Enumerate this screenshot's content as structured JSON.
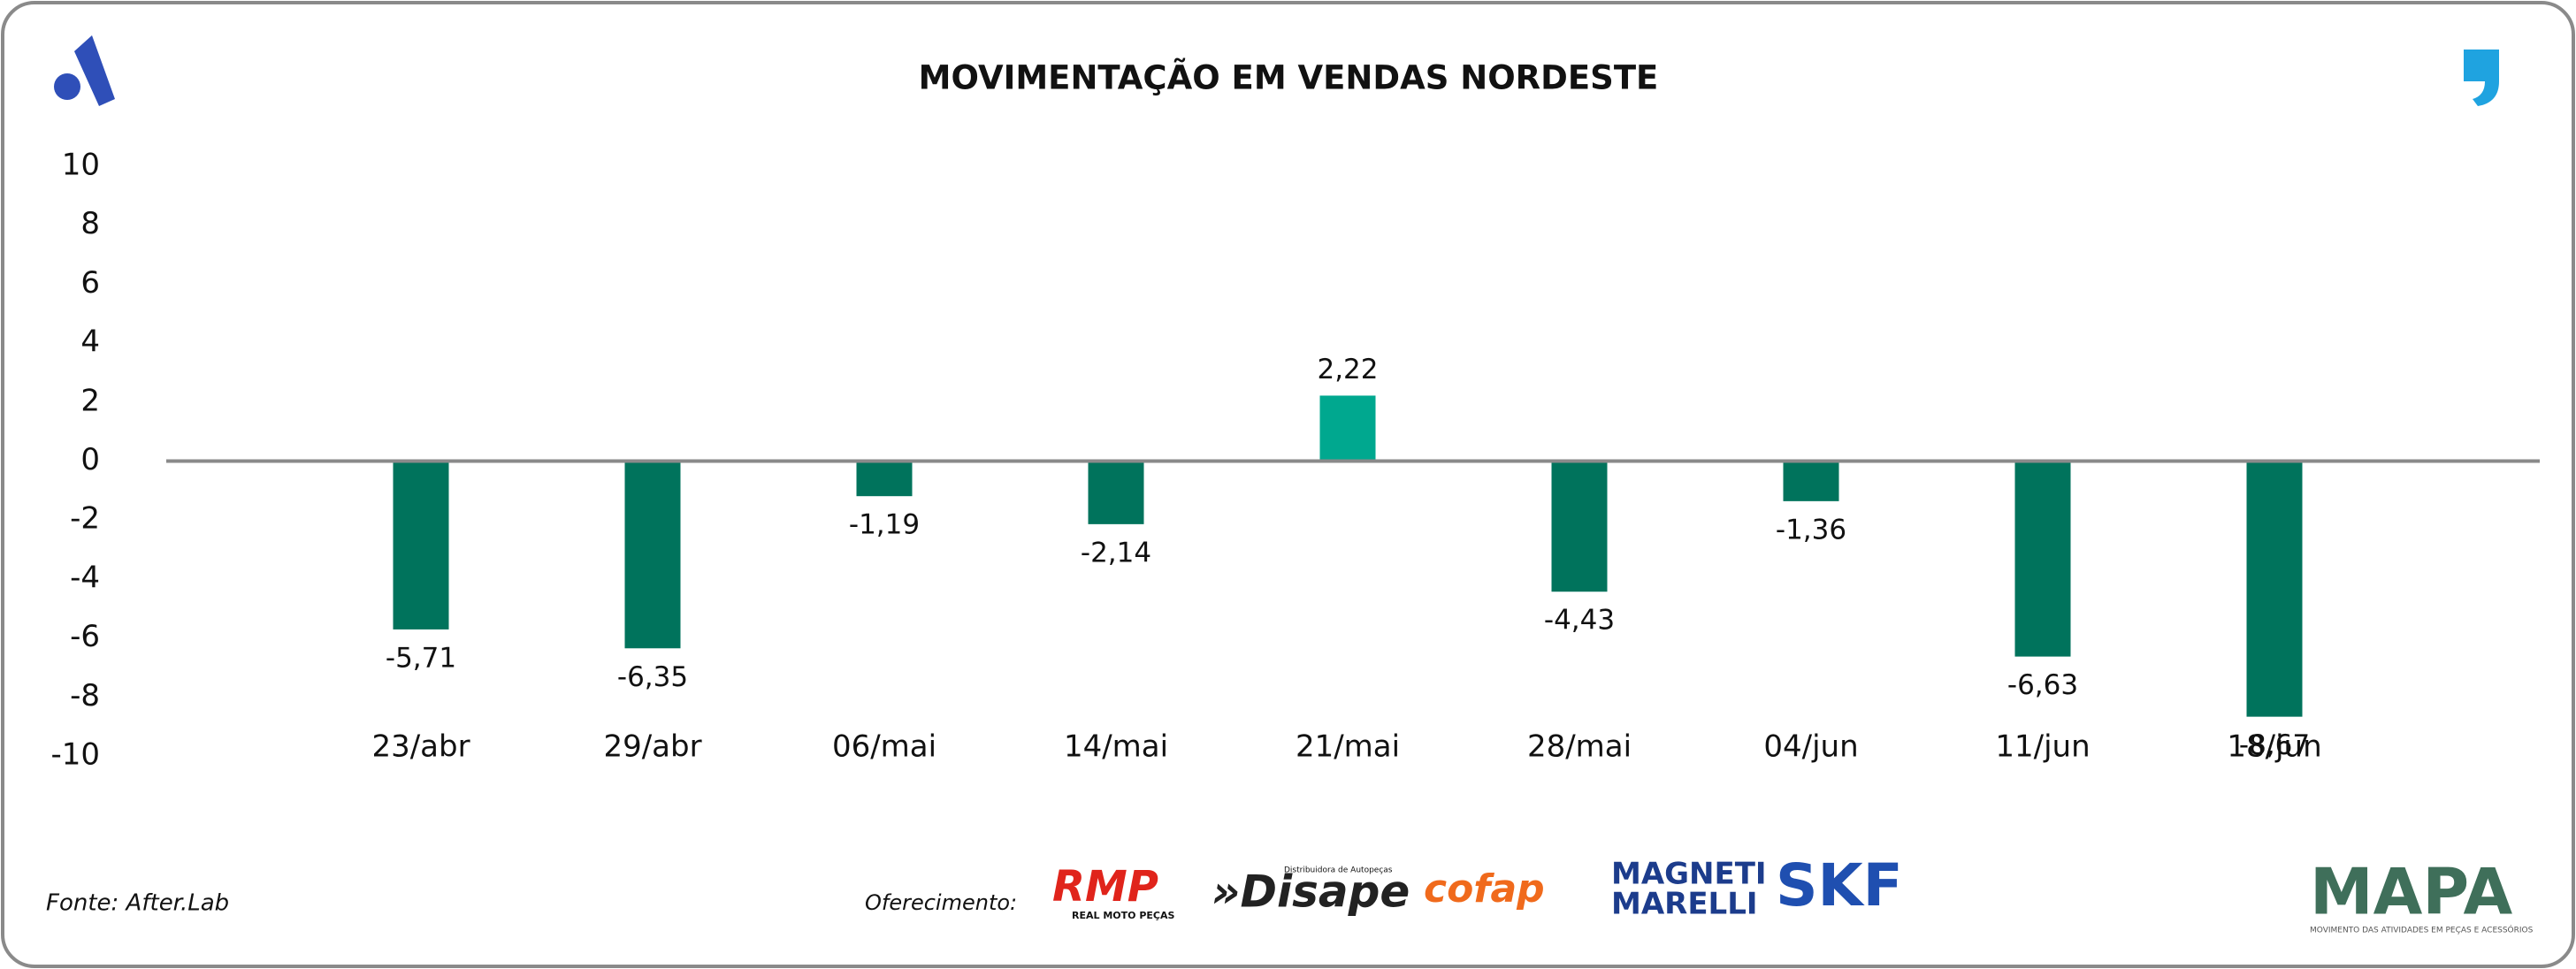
{
  "chart_data": {
    "type": "bar",
    "title": "MOVIMENTAÇÃO EM VENDAS NORDESTE",
    "categories": [
      "23/abr",
      "29/abr",
      "06/mai",
      "14/mai",
      "21/mai",
      "28/mai",
      "04/jun",
      "11/jun",
      "18/jun"
    ],
    "values": [
      -5.71,
      -6.35,
      -1.19,
      -2.14,
      2.22,
      -4.43,
      -1.36,
      -6.63,
      -8.67
    ],
    "value_labels": [
      "-5,71",
      "-6,35",
      "-1,19",
      "-2,14",
      "2,22",
      "-4,43",
      "-1,36",
      "-6,63",
      "-8,67"
    ],
    "colors": [
      "#00735c",
      "#00735c",
      "#00735c",
      "#00735c",
      "#00a88f",
      "#00735c",
      "#00735c",
      "#00735c",
      "#00735c"
    ],
    "ylim": [
      -10,
      10
    ],
    "yticks": [
      -10,
      -8,
      -6,
      -4,
      -2,
      0,
      2,
      4,
      6,
      8,
      10
    ],
    "grid": false
  },
  "source": "Fonte: After.Lab",
  "sponsor_label": "Oferecimento:",
  "sponsors": {
    "rmp": "RMP",
    "rmp_sub": "REAL MOTO PEÇAS",
    "disape": "»Disape",
    "disape_sub": "Distribuidora de Autopeças",
    "cofap": "cofap",
    "magneti": "MAGNETI",
    "marelli": "MARELLI",
    "skf": "SKF"
  },
  "brand": {
    "name": "MAPA",
    "tagline": "MOVIMENTO DAS ATIVIDADES EM PEÇAS E ACESSÓRIOS"
  }
}
